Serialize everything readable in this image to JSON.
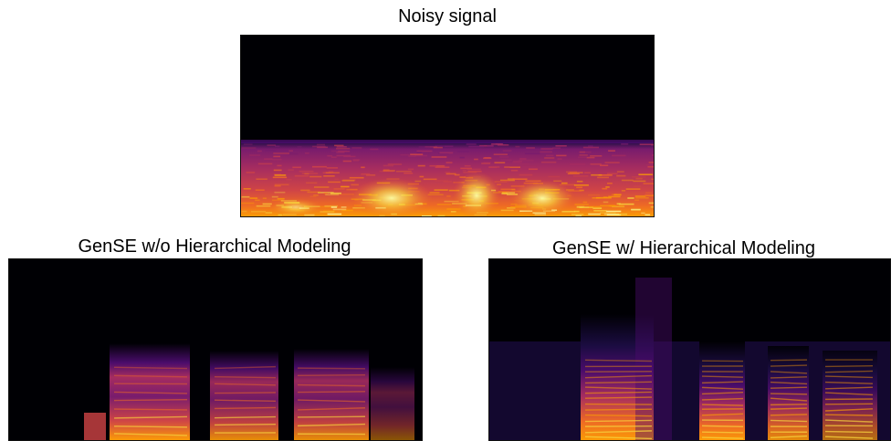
{
  "figure": {
    "panels": [
      {
        "id": "noisy",
        "title": "Noisy signal"
      },
      {
        "id": "wo",
        "title": "GenSE w/o Hierarchical Modeling"
      },
      {
        "id": "w",
        "title": "GenSE w/ Hierarchical Modeling"
      }
    ]
  },
  "colors": {
    "colormap": [
      "#000004",
      "#1b0c41",
      "#4a0c6b",
      "#781c6d",
      "#a52c60",
      "#cf4446",
      "#ed6925",
      "#fb9b06",
      "#f7d13d",
      "#fcffa4"
    ],
    "background": "#ffffff"
  }
}
